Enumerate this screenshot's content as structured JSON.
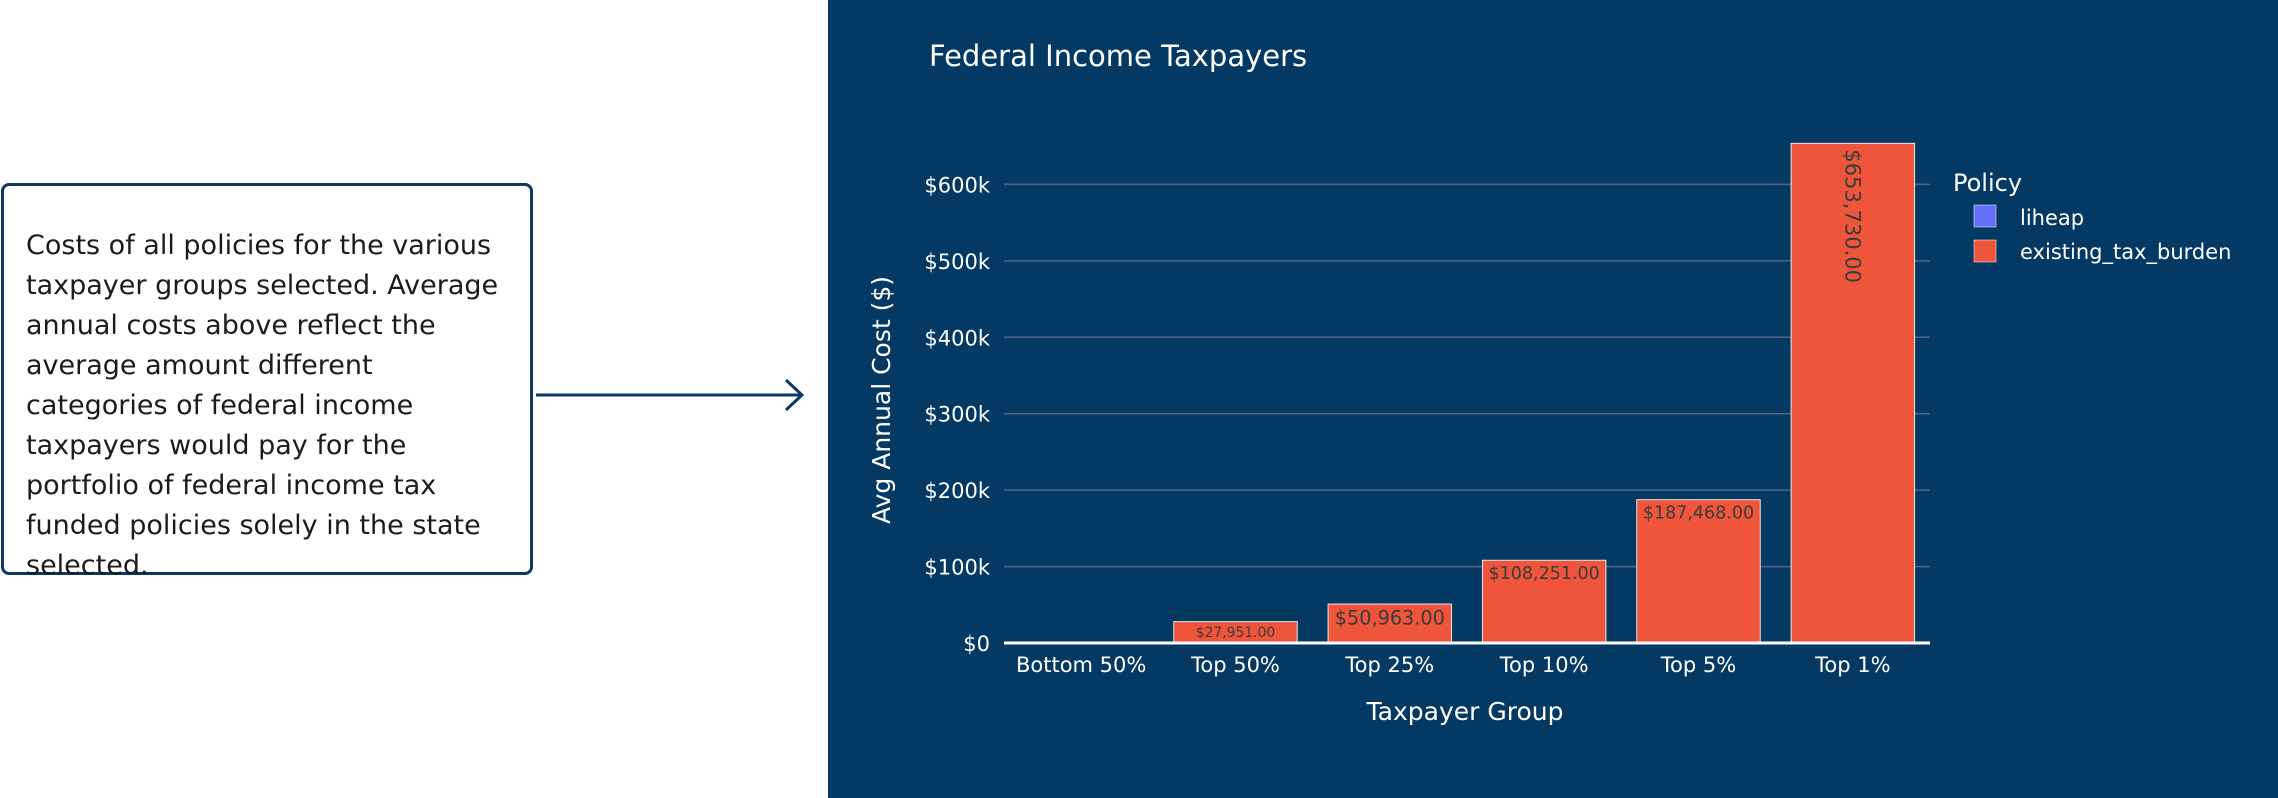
{
  "note": {
    "text": "Costs of all policies for the various taxpayer groups selected. Average annual costs above reflect the average amount different categories of federal income taxpayers would pay for the portfolio of federal income tax funded policies solely in the state selected."
  },
  "colors": {
    "panel_background": "#043963",
    "liheap": "#636efa",
    "existing_tax_burden": "#ef553b",
    "arrow": "#0c3a63"
  },
  "chart_data": {
    "type": "bar",
    "title": "Federal Income Taxpayers",
    "xlabel": "Taxpayer Group",
    "ylabel": "Avg Annual Cost ($)",
    "categories": [
      "Bottom 50%",
      "Top 50%",
      "Top 25%",
      "Top 10%",
      "Top 5%",
      "Top 1%"
    ],
    "series": [
      {
        "name": "liheap",
        "values": [
          0,
          0,
          0,
          0,
          0,
          0
        ]
      },
      {
        "name": "existing_tax_burden",
        "values": [
          0,
          27951,
          50963,
          108251,
          187468,
          653730
        ],
        "labels": [
          "",
          "$27,951.00",
          "$50,963.00",
          "$108,251.00",
          "$187,468.00",
          "$653,730.00"
        ]
      }
    ],
    "ylim": [
      0,
      700000
    ],
    "yticks": [
      0,
      100000,
      200000,
      300000,
      400000,
      500000,
      600000
    ],
    "ytick_labels": [
      "$0",
      "$100k",
      "$200k",
      "$300k",
      "$400k",
      "$500k",
      "$600k"
    ],
    "legend_title": "Policy",
    "legend_position": "right",
    "grid": true
  }
}
